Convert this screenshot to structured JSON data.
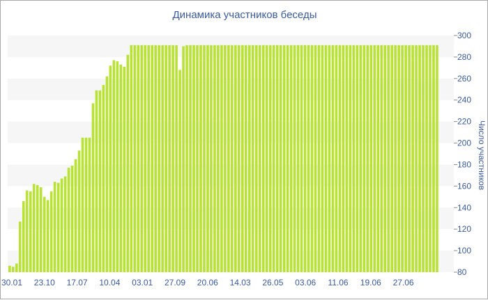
{
  "chart_data": {
    "type": "bar",
    "title": "Динамика участников беседы",
    "xlabel": "",
    "ylabel": "Число участников",
    "ylim": [
      80,
      300
    ],
    "y_ticks": [
      80,
      100,
      120,
      140,
      160,
      180,
      200,
      220,
      240,
      260,
      280,
      300
    ],
    "x_tick_labels": [
      "30.01",
      "23.10",
      "17.07",
      "10.04",
      "03.01",
      "27.09",
      "20.06",
      "14.03",
      "26.05",
      "03.06",
      "11.06",
      "19.06",
      "27.06"
    ],
    "y_axis_position": "right",
    "grid": "alternating horizontal bands",
    "bar_color": "#b8e234",
    "values": [
      86,
      85,
      88,
      127,
      146,
      156,
      155,
      162,
      161,
      159,
      150,
      147,
      155,
      164,
      163,
      167,
      169,
      177,
      179,
      185,
      193,
      205,
      205,
      205,
      237,
      249,
      249,
      254,
      262,
      272,
      277,
      276,
      273,
      271,
      282,
      291,
      291,
      291,
      291,
      291,
      291,
      291,
      291,
      291,
      291,
      291,
      291,
      291,
      291,
      268,
      290,
      291,
      291,
      291,
      291,
      291,
      291,
      291,
      291,
      291,
      291,
      291,
      291,
      291,
      291,
      291,
      291,
      291,
      291,
      291,
      291,
      291,
      291,
      291,
      291,
      291,
      291,
      291,
      291,
      291,
      291,
      291,
      291,
      291,
      291,
      291,
      291,
      291,
      291,
      291,
      291,
      291,
      291,
      291,
      291,
      291,
      291,
      291,
      291,
      291,
      291,
      291,
      291,
      291,
      291,
      291,
      291,
      291,
      291,
      291,
      291,
      291,
      291,
      291,
      291,
      291,
      291,
      291,
      291,
      291,
      291,
      291,
      291,
      291
    ]
  }
}
